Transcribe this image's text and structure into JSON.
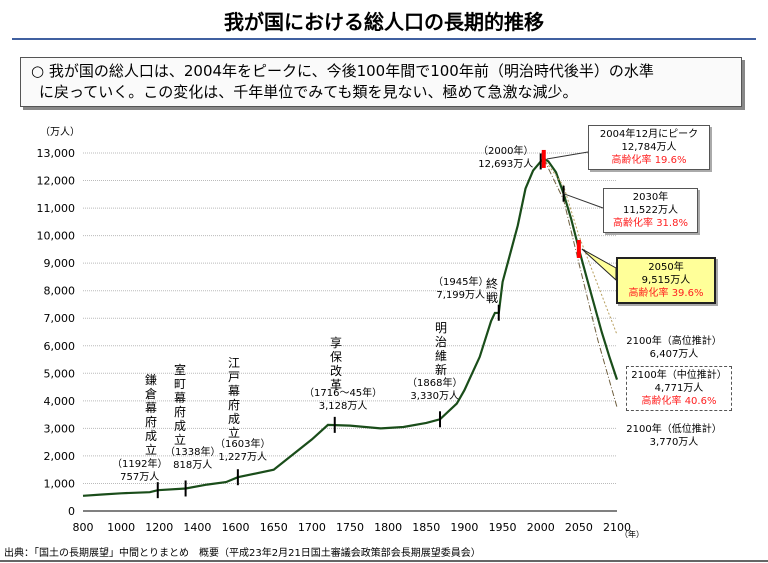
{
  "title": "我が国における総人口の長期的推移",
  "summary": {
    "line1": "○  我が国の総人口は、2004年をピークに、今後100年間で100年前（明治時代後半）の水準",
    "line2": "に戻っていく。この変化は、千年単位でみても類を見ない、極めて急激な減少。"
  },
  "source": "出典：「国土の長期展望」中間とりまとめ　概要（平成23年2月21日国土審議会政策部会長期展望委員会）",
  "colors": {
    "line": "#1a4d1a",
    "high": "#b8a060",
    "low": "#706040",
    "marker_red": "#ff0000",
    "highlight_box": "#ffff99",
    "accent_text": "#ff2020"
  },
  "chart_data": {
    "type": "line",
    "ylabel": "（万人）",
    "xlabel": "（年）",
    "ylim": [
      0,
      13000
    ],
    "yticks": [
      "0",
      "1,000",
      "2,000",
      "3,000",
      "4,000",
      "5,000",
      "6,000",
      "7,000",
      "8,000",
      "9,000",
      "10,000",
      "11,000",
      "12,000",
      "13,000"
    ],
    "xticks": [
      800,
      1000,
      1200,
      1400,
      1600,
      1650,
      1700,
      1750,
      1800,
      1850,
      1900,
      1950,
      2000,
      2050,
      2100
    ],
    "grid": true,
    "series": [
      {
        "key": "actual_and_middle",
        "points": [
          [
            800,
            551
          ],
          [
            900,
            600
          ],
          [
            1000,
            644
          ],
          [
            1150,
            684
          ],
          [
            1192,
            757
          ],
          [
            1338,
            818
          ],
          [
            1450,
            960
          ],
          [
            1550,
            1050
          ],
          [
            1603,
            1227
          ],
          [
            1650,
            1500
          ],
          [
            1700,
            2600
          ],
          [
            1721,
            3128
          ],
          [
            1750,
            3100
          ],
          [
            1790,
            3000
          ],
          [
            1820,
            3050
          ],
          [
            1850,
            3200
          ],
          [
            1868,
            3330
          ],
          [
            1890,
            3900
          ],
          [
            1900,
            4385
          ],
          [
            1920,
            5596
          ],
          [
            1935,
            6900
          ],
          [
            1940,
            7193
          ],
          [
            1945,
            7199
          ],
          [
            1950,
            8320
          ],
          [
            1960,
            9342
          ],
          [
            1970,
            10372
          ],
          [
            1980,
            11706
          ],
          [
            1990,
            12361
          ],
          [
            2000,
            12693
          ],
          [
            2004,
            12784
          ],
          [
            2010,
            12700
          ],
          [
            2020,
            12300
          ],
          [
            2030,
            11522
          ],
          [
            2040,
            10600
          ],
          [
            2050,
            9515
          ],
          [
            2060,
            8500
          ],
          [
            2070,
            7500
          ],
          [
            2080,
            6500
          ],
          [
            2090,
            5600
          ],
          [
            2100,
            4771
          ]
        ]
      },
      {
        "key": "high",
        "points": [
          [
            2004,
            12784
          ],
          [
            2030,
            11800
          ],
          [
            2050,
            10000
          ],
          [
            2075,
            8200
          ],
          [
            2100,
            6407
          ]
        ]
      },
      {
        "key": "low",
        "points": [
          [
            2004,
            12784
          ],
          [
            2030,
            11300
          ],
          [
            2050,
            9000
          ],
          [
            2075,
            6200
          ],
          [
            2100,
            3770
          ]
        ]
      }
    ],
    "events": [
      {
        "label": "鎌倉幕府成立",
        "year_label": "（1192年）",
        "pop_label": "757万人",
        "year": 1192,
        "pop": 757
      },
      {
        "label": "室町幕府成立",
        "year_label": "（1338年）",
        "pop_label": "818万人",
        "year": 1338,
        "pop": 818
      },
      {
        "label": "江戸幕府成立",
        "year_label": "（1603年）",
        "pop_label": "1,227万人",
        "year": 1603,
        "pop": 1227
      },
      {
        "label": "享保改革",
        "year_label": "（1716～45年）",
        "pop_label": "3,128万人",
        "year": 1730,
        "pop": 3128
      },
      {
        "label": "明治維新",
        "year_label": "（1868年）",
        "pop_label": "3,330万人",
        "year": 1868,
        "pop": 3330
      },
      {
        "label": "終戦",
        "year_label": "（1945年）",
        "pop_label": "7,199万人",
        "year": 1945,
        "pop": 7199
      },
      {
        "label": "",
        "year_label": "（2000年）",
        "pop_label": "12,693万人",
        "year": 2000,
        "pop": 12693
      }
    ],
    "callouts": [
      {
        "line1": "2004年12月にピーク",
        "line2": "12,784万人",
        "line3": "高齢化率  19.6%"
      },
      {
        "line1": "2030年",
        "line2": "11,522万人",
        "line3": "高齢化率  31.8%"
      },
      {
        "line1": "2050年",
        "line2": "9,515万人",
        "line3": "高齢化率  39.6%"
      },
      {
        "line1": "2100年（高位推計）",
        "line2": "6,407万人"
      },
      {
        "line1": "2100年（中位推計）",
        "line2": "4,771万人",
        "line3": "高齢化率  40.6%"
      },
      {
        "line1": "2100年（低位推計）",
        "line2": "3,770万人"
      }
    ]
  }
}
